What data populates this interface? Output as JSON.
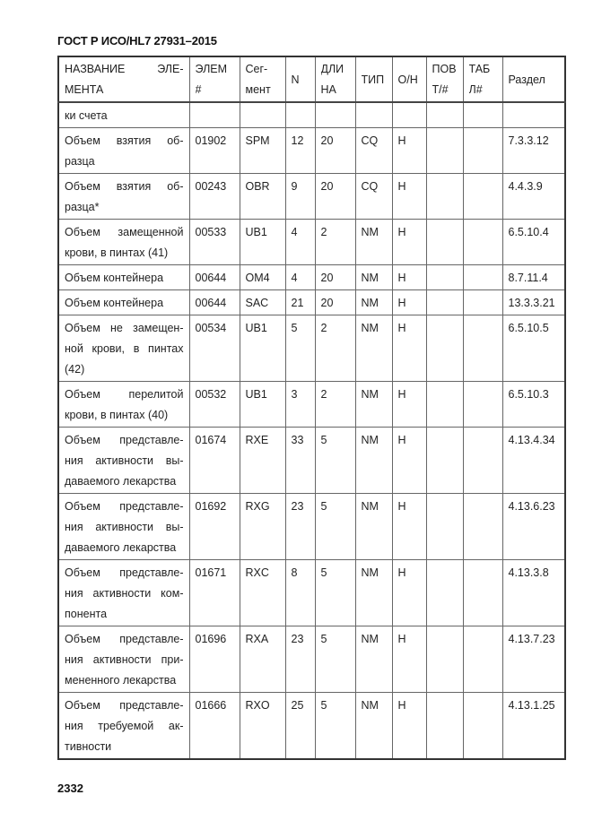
{
  "header": {
    "title": "ГОСТ Р ИСО/HL7 27931–2015"
  },
  "table": {
    "columns": [
      [
        "НАЗВАНИЕ      ЭЛЕ-",
        "МЕНТА"
      ],
      [
        "ЭЛЕМ",
        "#"
      ],
      [
        "Сег-",
        "мент"
      ],
      [
        "N"
      ],
      [
        "ДЛИ",
        "НА"
      ],
      [
        "ТИП"
      ],
      [
        "О/Н"
      ],
      [
        "ПОВ",
        "Т/#"
      ],
      [
        "ТАБ",
        "Л#"
      ],
      [
        "Раздел"
      ]
    ],
    "rows": [
      {
        "name": [
          "ки счета"
        ],
        "elem": "",
        "seg": "",
        "n": "",
        "len": "",
        "type": "",
        "on": "",
        "rep": "",
        "tbl": "",
        "section": ""
      },
      {
        "name": [
          "Объем взятия об-",
          "разца"
        ],
        "elem": "01902",
        "seg": "SPM",
        "n": "12",
        "len": "20",
        "type": "CQ",
        "on": "Н",
        "rep": "",
        "tbl": "",
        "section": "7.3.3.12"
      },
      {
        "name": [
          "Объем взятия об-",
          "разца*"
        ],
        "elem": "00243",
        "seg": "OBR",
        "n": "9",
        "len": "20",
        "type": "CQ",
        "on": "Н",
        "rep": "",
        "tbl": "",
        "section": "4.4.3.9"
      },
      {
        "name": [
          "Объем замещенной",
          "крови, в пинтах (41)"
        ],
        "elem": "00533",
        "seg": "UB1",
        "n": "4",
        "len": "2",
        "type": "NM",
        "on": "Н",
        "rep": "",
        "tbl": "",
        "section": "6.5.10.4"
      },
      {
        "name": [
          "Объем контейнера"
        ],
        "elem": "00644",
        "seg": "OM4",
        "n": "4",
        "len": "20",
        "type": "NM",
        "on": "Н",
        "rep": "",
        "tbl": "",
        "section": "8.7.11.4"
      },
      {
        "name": [
          "Объем контейнера"
        ],
        "elem": "00644",
        "seg": "SAC",
        "n": "21",
        "len": "20",
        "type": "NM",
        "on": "Н",
        "rep": "",
        "tbl": "",
        "section": "13.3.3.21"
      },
      {
        "name": [
          "Объем не замещен-",
          "ной крови, в пинтах",
          "(42)"
        ],
        "elem": "00534",
        "seg": "UB1",
        "n": "5",
        "len": "2",
        "type": "NM",
        "on": "Н",
        "rep": "",
        "tbl": "",
        "section": "6.5.10.5"
      },
      {
        "name": [
          "Объем перелитой",
          "крови, в пинтах (40)"
        ],
        "elem": "00532",
        "seg": "UB1",
        "n": "3",
        "len": "2",
        "type": "NM",
        "on": "Н",
        "rep": "",
        "tbl": "",
        "section": "6.5.10.3"
      },
      {
        "name": [
          "Объем представле-",
          "ния активности вы-",
          "даваемого лекарства"
        ],
        "elem": "01674",
        "seg": "RXE",
        "n": "33",
        "len": "5",
        "type": "NM",
        "on": "Н",
        "rep": "",
        "tbl": "",
        "section": "4.13.4.34"
      },
      {
        "name": [
          "Объем представле-",
          "ния активности вы-",
          "даваемого лекарства"
        ],
        "elem": "01692",
        "seg": "RXG",
        "n": "23",
        "len": "5",
        "type": "NM",
        "on": "Н",
        "rep": "",
        "tbl": "",
        "section": "4.13.6.23"
      },
      {
        "name": [
          "Объем представле-",
          "ния активности ком-",
          "понента"
        ],
        "elem": "01671",
        "seg": "RXC",
        "n": "8",
        "len": "5",
        "type": "NM",
        "on": "Н",
        "rep": "",
        "tbl": "",
        "section": "4.13.3.8"
      },
      {
        "name": [
          "Объем представле-",
          "ния активности при-",
          "мененного лекарства"
        ],
        "elem": "01696",
        "seg": "RXA",
        "n": "23",
        "len": "5",
        "type": "NM",
        "on": "Н",
        "rep": "",
        "tbl": "",
        "section": "4.13.7.23"
      },
      {
        "name": [
          "Объем представле-",
          "ния требуемой ак-",
          "тивности"
        ],
        "elem": "01666",
        "seg": "RXO",
        "n": "25",
        "len": "5",
        "type": "NM",
        "on": "Н",
        "rep": "",
        "tbl": "",
        "section": "4.13.1.25"
      }
    ]
  },
  "footer": {
    "page_number": "2332"
  }
}
